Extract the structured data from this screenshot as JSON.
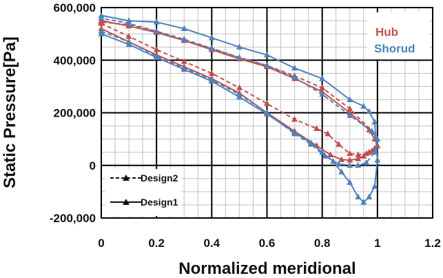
{
  "chart_data": {
    "type": "line",
    "xlabel": "Normalized meridional",
    "ylabel": "Static Pressure[Pa]",
    "xlim": [
      0,
      1.2
    ],
    "ylim": [
      -200000,
      600000
    ],
    "x_ticks": [
      "0",
      "0.2",
      "0.4",
      "0.6",
      "0.8",
      "1",
      "1.2"
    ],
    "y_ticks": [
      "-200,000",
      "0",
      "200,000",
      "400,000",
      "600,000"
    ],
    "grid": true,
    "series_tags": [
      {
        "name": "Hub",
        "color": "#c0504d"
      },
      {
        "name": "Shorud",
        "color": "#4f81bd"
      }
    ],
    "style_legend": [
      {
        "name": "Design2",
        "line": "dashed",
        "marker": "triangle"
      },
      {
        "name": "Design1",
        "line": "solid",
        "marker": "triangle"
      }
    ],
    "series": [
      {
        "name": "Hub",
        "style": "Design1",
        "color": "#c0504d",
        "x": [
          0,
          0.1,
          0.2,
          0.3,
          0.4,
          0.5,
          0.6,
          0.7,
          0.78,
          0.83,
          0.87,
          0.9,
          0.93,
          0.95,
          0.97,
          0.99,
          1.0,
          0.99,
          0.97,
          0.9,
          0.8,
          0.7,
          0.6,
          0.5,
          0.4,
          0.3,
          0.2,
          0.1,
          0.0
        ],
        "y": [
          520000,
          470000,
          420000,
          375000,
          330000,
          275000,
          200000,
          130000,
          75000,
          40000,
          22000,
          20000,
          25000,
          35000,
          50000,
          65000,
          75000,
          100000,
          135000,
          200000,
          280000,
          330000,
          375000,
          405000,
          440000,
          475000,
          505000,
          530000,
          550000
        ]
      },
      {
        "name": "Hub",
        "style": "Design2",
        "color": "#c0504d",
        "x": [
          0,
          0.1,
          0.2,
          0.3,
          0.4,
          0.5,
          0.6,
          0.7,
          0.78,
          0.82,
          0.86,
          0.9,
          0.93,
          0.96,
          0.98,
          1.0,
          0.98,
          0.9,
          0.8,
          0.7,
          0.6,
          0.5,
          0.4,
          0.3,
          0.2,
          0.1,
          0.0
        ],
        "y": [
          540000,
          490000,
          440000,
          395000,
          350000,
          295000,
          235000,
          175000,
          140000,
          120000,
          80000,
          45000,
          40000,
          45000,
          55000,
          75000,
          130000,
          215000,
          295000,
          340000,
          380000,
          410000,
          445000,
          475000,
          510000,
          535000,
          545000
        ]
      },
      {
        "name": "Shorud",
        "style": "Design1",
        "color": "#4f81bd",
        "x": [
          0,
          0.1,
          0.2,
          0.3,
          0.4,
          0.5,
          0.6,
          0.7,
          0.76,
          0.8,
          0.84,
          0.87,
          0.9,
          0.93,
          0.95,
          0.97,
          0.99,
          1.0,
          0.99,
          0.97,
          0.95,
          0.9,
          0.8,
          0.7,
          0.6,
          0.5,
          0.4,
          0.3,
          0.2,
          0.1,
          0.0
        ],
        "y": [
          500000,
          460000,
          410000,
          365000,
          320000,
          260000,
          195000,
          125000,
          85000,
          50000,
          15000,
          -25000,
          -65000,
          -120000,
          -140000,
          -120000,
          -80000,
          20000,
          165000,
          205000,
          225000,
          250000,
          330000,
          370000,
          420000,
          450000,
          485000,
          520000,
          545000,
          550000,
          570000
        ]
      },
      {
        "name": "Shorud",
        "style": "Design2",
        "color": "#4f81bd",
        "x": [
          0,
          0.1,
          0.2,
          0.3,
          0.4,
          0.5,
          0.6,
          0.7,
          0.76,
          0.81,
          0.86,
          0.9,
          0.93,
          0.96,
          0.99,
          1.0,
          0.98,
          0.9,
          0.8,
          0.7,
          0.6,
          0.5,
          0.4,
          0.3,
          0.2,
          0.1,
          0.0
        ],
        "y": [
          510000,
          470000,
          415000,
          370000,
          325000,
          270000,
          200000,
          120000,
          80000,
          35000,
          5000,
          0,
          0,
          10000,
          50000,
          100000,
          130000,
          190000,
          270000,
          335000,
          380000,
          410000,
          445000,
          480000,
          510000,
          540000,
          560000
        ]
      }
    ]
  }
}
